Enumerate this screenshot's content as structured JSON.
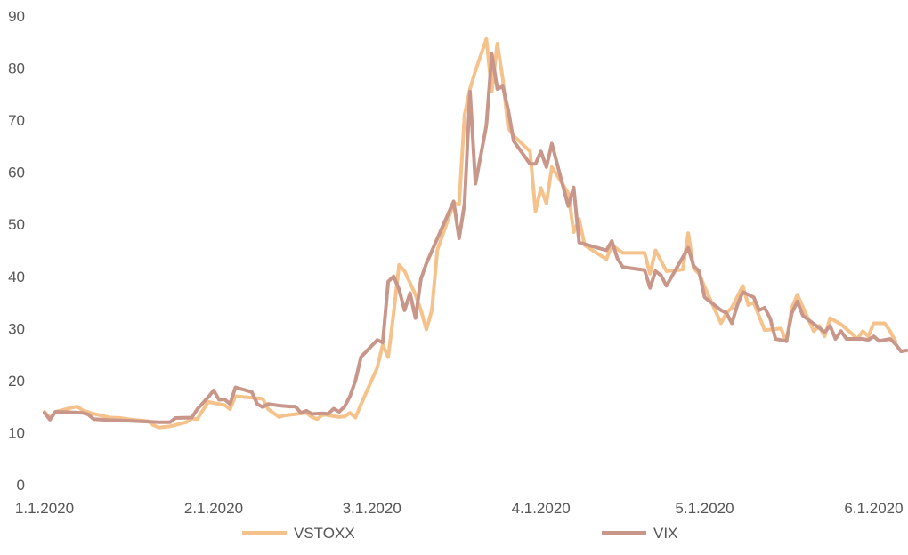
{
  "chart_data": {
    "type": "line",
    "title": "",
    "xlabel": "",
    "ylabel": "",
    "ylim": [
      0,
      90
    ],
    "yticks": [
      "0",
      "10",
      "20",
      "30",
      "40",
      "50",
      "60",
      "70",
      "80",
      "90"
    ],
    "xlim": [
      "2020-01-01",
      "2020-06-05"
    ],
    "xticks": [
      {
        "date": "2020-01-01",
        "label": "1.1.2020"
      },
      {
        "date": "2020-02-01",
        "label": "2.1.2020"
      },
      {
        "date": "2020-03-01",
        "label": "3.1.2020"
      },
      {
        "date": "2020-04-01",
        "label": "4.1.2020"
      },
      {
        "date": "2020-05-01",
        "label": "5.1.2020"
      },
      {
        "date": "2020-06-01",
        "label": "6.1.2020"
      }
    ],
    "grid": false,
    "legend_position": "bottom",
    "series": [
      {
        "name": "VSTOXX",
        "color": "#f4c28a",
        "points": [
          [
            "2020-01-01",
            14.0
          ],
          [
            "2020-01-02",
            12.8
          ],
          [
            "2020-01-03",
            14.0
          ],
          [
            "2020-01-06",
            14.8
          ],
          [
            "2020-01-07",
            15.0
          ],
          [
            "2020-01-08",
            14.3
          ],
          [
            "2020-01-10",
            13.6
          ],
          [
            "2020-01-13",
            12.9
          ],
          [
            "2020-01-15",
            12.8
          ],
          [
            "2020-01-17",
            12.5
          ],
          [
            "2020-01-20",
            12.2
          ],
          [
            "2020-01-21",
            11.4
          ],
          [
            "2020-01-22",
            11.0
          ],
          [
            "2020-01-24",
            11.2
          ],
          [
            "2020-01-27",
            12.0
          ],
          [
            "2020-01-28",
            12.7
          ],
          [
            "2020-01-29",
            12.6
          ],
          [
            "2020-01-31",
            15.9
          ],
          [
            "2020-02-03",
            15.3
          ],
          [
            "2020-02-04",
            14.5
          ],
          [
            "2020-02-05",
            17.0
          ],
          [
            "2020-02-07",
            16.8
          ],
          [
            "2020-02-10",
            16.5
          ],
          [
            "2020-02-11",
            14.5
          ],
          [
            "2020-02-13",
            13.0
          ],
          [
            "2020-02-14",
            13.3
          ],
          [
            "2020-02-18",
            13.8
          ],
          [
            "2020-02-19",
            13.0
          ],
          [
            "2020-02-20",
            12.6
          ],
          [
            "2020-02-21",
            13.5
          ],
          [
            "2020-02-24",
            13.0
          ],
          [
            "2020-02-25",
            13.1
          ],
          [
            "2020-02-26",
            13.8
          ],
          [
            "2020-02-27",
            12.9
          ],
          [
            "2020-02-28",
            15.4
          ],
          [
            "2020-03-02",
            22.5
          ],
          [
            "2020-03-03",
            26.9
          ],
          [
            "2020-03-04",
            24.5
          ],
          [
            "2020-03-05",
            33.0
          ],
          [
            "2020-03-06",
            42.2
          ],
          [
            "2020-03-07",
            41.0
          ],
          [
            "2020-03-09",
            36.5
          ],
          [
            "2020-03-10",
            33.5
          ],
          [
            "2020-03-11",
            29.8
          ],
          [
            "2020-03-12",
            33.5
          ],
          [
            "2020-03-13",
            45.0
          ],
          [
            "2020-03-16",
            54.0
          ],
          [
            "2020-03-17",
            53.8
          ],
          [
            "2020-03-18",
            71.0
          ],
          [
            "2020-03-19",
            76.0
          ],
          [
            "2020-03-20",
            79.5
          ],
          [
            "2020-03-22",
            85.6
          ],
          [
            "2020-03-23",
            75.5
          ],
          [
            "2020-03-24",
            84.7
          ],
          [
            "2020-03-25",
            78.0
          ],
          [
            "2020-03-26",
            68.5
          ],
          [
            "2020-03-27",
            67.0
          ],
          [
            "2020-03-30",
            64.0
          ],
          [
            "2020-03-31",
            52.5
          ],
          [
            "2020-04-01",
            57.0
          ],
          [
            "2020-04-02",
            54.0
          ],
          [
            "2020-04-03",
            61.0
          ],
          [
            "2020-04-06",
            56.0
          ],
          [
            "2020-04-07",
            48.5
          ],
          [
            "2020-04-08",
            51.0
          ],
          [
            "2020-04-09",
            46.0
          ],
          [
            "2020-04-13",
            43.3
          ],
          [
            "2020-04-14",
            46.0
          ],
          [
            "2020-04-16",
            44.5
          ],
          [
            "2020-04-20",
            44.5
          ],
          [
            "2020-04-21",
            40.5
          ],
          [
            "2020-04-22",
            45.0
          ],
          [
            "2020-04-24",
            41.0
          ],
          [
            "2020-04-27",
            41.3
          ],
          [
            "2020-04-28",
            48.3
          ],
          [
            "2020-04-29",
            41.5
          ],
          [
            "2020-04-30",
            40.5
          ],
          [
            "2020-05-01",
            38.0
          ],
          [
            "2020-05-04",
            31.0
          ],
          [
            "2020-05-05",
            33.0
          ],
          [
            "2020-05-06",
            34.0
          ],
          [
            "2020-05-08",
            38.2
          ],
          [
            "2020-05-09",
            34.5
          ],
          [
            "2020-05-10",
            35.0
          ],
          [
            "2020-05-12",
            29.7
          ],
          [
            "2020-05-15",
            30.0
          ],
          [
            "2020-05-16",
            27.5
          ],
          [
            "2020-05-17",
            34.0
          ],
          [
            "2020-05-18",
            36.5
          ],
          [
            "2020-05-21",
            29.5
          ],
          [
            "2020-05-22",
            30.5
          ],
          [
            "2020-05-23",
            28.5
          ],
          [
            "2020-05-24",
            32.0
          ],
          [
            "2020-05-26",
            30.8
          ],
          [
            "2020-05-28",
            29.0
          ],
          [
            "2020-05-29",
            28.0
          ],
          [
            "2020-05-30",
            29.5
          ],
          [
            "2020-05-31",
            28.5
          ],
          [
            "2020-06-01",
            31.0
          ],
          [
            "2020-06-03",
            31.0
          ],
          [
            "2020-06-04",
            29.5
          ],
          [
            "2020-06-05",
            27.5
          ]
        ]
      },
      {
        "name": "VIX",
        "color": "#c9968a",
        "points": [
          [
            "2020-01-01",
            13.8
          ],
          [
            "2020-01-02",
            12.5
          ],
          [
            "2020-01-03",
            14.0
          ],
          [
            "2020-01-06",
            13.9
          ],
          [
            "2020-01-08",
            13.8
          ],
          [
            "2020-01-09",
            13.5
          ],
          [
            "2020-01-10",
            12.6
          ],
          [
            "2020-01-13",
            12.4
          ],
          [
            "2020-01-16",
            12.3
          ],
          [
            "2020-01-20",
            12.1
          ],
          [
            "2020-01-22",
            12.0
          ],
          [
            "2020-01-24",
            12.0
          ],
          [
            "2020-01-25",
            12.8
          ],
          [
            "2020-01-28",
            12.9
          ],
          [
            "2020-01-29",
            14.5
          ],
          [
            "2020-01-31",
            16.8
          ],
          [
            "2020-02-01",
            18.1
          ],
          [
            "2020-02-02",
            16.3
          ],
          [
            "2020-02-03",
            16.4
          ],
          [
            "2020-02-04",
            15.5
          ],
          [
            "2020-02-05",
            18.7
          ],
          [
            "2020-02-08",
            17.8
          ],
          [
            "2020-02-09",
            15.5
          ],
          [
            "2020-02-10",
            14.9
          ],
          [
            "2020-02-11",
            15.5
          ],
          [
            "2020-02-13",
            15.2
          ],
          [
            "2020-02-15",
            15.0
          ],
          [
            "2020-02-16",
            15.0
          ],
          [
            "2020-02-17",
            13.8
          ],
          [
            "2020-02-18",
            14.2
          ],
          [
            "2020-02-19",
            13.6
          ],
          [
            "2020-02-21",
            13.7
          ],
          [
            "2020-02-22",
            13.6
          ],
          [
            "2020-02-23",
            14.6
          ],
          [
            "2020-02-24",
            14.0
          ],
          [
            "2020-02-25",
            15.0
          ],
          [
            "2020-02-26",
            17.0
          ],
          [
            "2020-02-27",
            20.0
          ],
          [
            "2020-02-28",
            24.5
          ],
          [
            "2020-03-02",
            27.8
          ],
          [
            "2020-03-03",
            27.3
          ],
          [
            "2020-03-04",
            39.0
          ],
          [
            "2020-03-05",
            40.0
          ],
          [
            "2020-03-06",
            37.5
          ],
          [
            "2020-03-07",
            33.5
          ],
          [
            "2020-03-08",
            36.8
          ],
          [
            "2020-03-09",
            32.0
          ],
          [
            "2020-03-10",
            39.5
          ],
          [
            "2020-03-11",
            42.5
          ],
          [
            "2020-03-16",
            54.4
          ],
          [
            "2020-03-17",
            47.3
          ],
          [
            "2020-03-18",
            54.0
          ],
          [
            "2020-03-19",
            75.5
          ],
          [
            "2020-03-20",
            57.8
          ],
          [
            "2020-03-22",
            69.0
          ],
          [
            "2020-03-23",
            82.7
          ],
          [
            "2020-03-24",
            76.0
          ],
          [
            "2020-03-25",
            76.5
          ],
          [
            "2020-03-26",
            72.0
          ],
          [
            "2020-03-27",
            66.0
          ],
          [
            "2020-03-30",
            61.6
          ],
          [
            "2020-03-31",
            61.6
          ],
          [
            "2020-04-01",
            64.0
          ],
          [
            "2020-04-02",
            61.0
          ],
          [
            "2020-04-03",
            65.5
          ],
          [
            "2020-04-06",
            53.5
          ],
          [
            "2020-04-07",
            57.1
          ],
          [
            "2020-04-08",
            46.5
          ],
          [
            "2020-04-13",
            45.0
          ],
          [
            "2020-04-14",
            46.8
          ],
          [
            "2020-04-15",
            43.5
          ],
          [
            "2020-04-16",
            41.8
          ],
          [
            "2020-04-20",
            41.2
          ],
          [
            "2020-04-21",
            37.8
          ],
          [
            "2020-04-22",
            41.0
          ],
          [
            "2020-04-23",
            40.2
          ],
          [
            "2020-04-24",
            38.2
          ],
          [
            "2020-04-28",
            45.5
          ],
          [
            "2020-04-29",
            42.0
          ],
          [
            "2020-04-30",
            41.0
          ],
          [
            "2020-05-01",
            36.0
          ],
          [
            "2020-05-04",
            33.5
          ],
          [
            "2020-05-05",
            33.0
          ],
          [
            "2020-05-06",
            31.0
          ],
          [
            "2020-05-07",
            34.5
          ],
          [
            "2020-05-08",
            37.0
          ],
          [
            "2020-05-10",
            36.0
          ],
          [
            "2020-05-11",
            33.5
          ],
          [
            "2020-05-12",
            34.0
          ],
          [
            "2020-05-13",
            32.0
          ],
          [
            "2020-05-14",
            28.0
          ],
          [
            "2020-05-16",
            27.6
          ],
          [
            "2020-05-17",
            33.0
          ],
          [
            "2020-05-18",
            35.2
          ],
          [
            "2020-05-19",
            32.5
          ],
          [
            "2020-05-23",
            29.3
          ],
          [
            "2020-05-24",
            30.5
          ],
          [
            "2020-05-25",
            28.0
          ],
          [
            "2020-05-26",
            29.5
          ],
          [
            "2020-05-27",
            28.0
          ],
          [
            "2020-05-30",
            28.0
          ],
          [
            "2020-05-31",
            27.8
          ],
          [
            "2020-06-01",
            28.5
          ],
          [
            "2020-06-02",
            27.6
          ],
          [
            "2020-06-04",
            28.0
          ],
          [
            "2020-06-05",
            27.0
          ],
          [
            "2020-06-06",
            25.6
          ],
          [
            "2020-06-07",
            25.8
          ]
        ]
      }
    ]
  }
}
